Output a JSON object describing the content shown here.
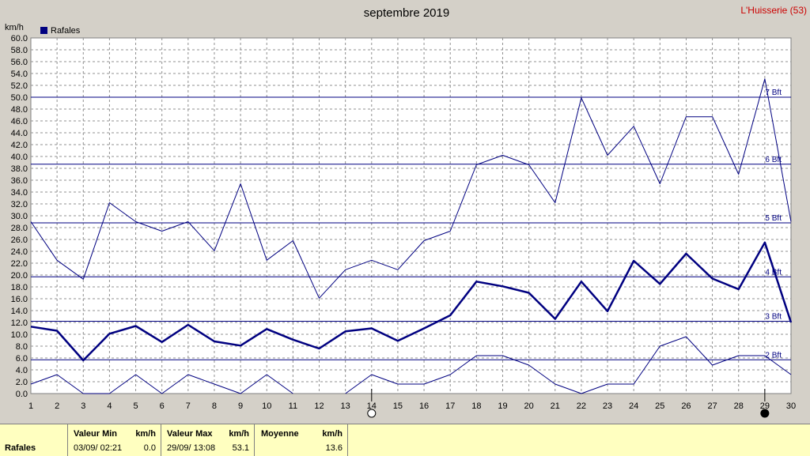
{
  "chart_data": {
    "type": "line",
    "title": "septembre 2019",
    "station": "L'Huisserie (53)",
    "ylabel": "km/h",
    "ylim": [
      0,
      60
    ],
    "y_ticks": [
      "0.0",
      "2.0",
      "4.0",
      "6.0",
      "8.0",
      "10.0",
      "12.0",
      "14.0",
      "16.0",
      "18.0",
      "20.0",
      "22.0",
      "24.0",
      "26.0",
      "28.0",
      "30.0",
      "32.0",
      "34.0",
      "36.0",
      "38.0",
      "40.0",
      "42.0",
      "44.0",
      "46.0",
      "48.0",
      "50.0",
      "52.0",
      "54.0",
      "56.0",
      "58.0",
      "60.0"
    ],
    "x": [
      1,
      2,
      3,
      4,
      5,
      6,
      7,
      8,
      9,
      10,
      11,
      12,
      13,
      14,
      15,
      16,
      17,
      18,
      19,
      20,
      21,
      22,
      23,
      24,
      25,
      26,
      27,
      28,
      29,
      30
    ],
    "x_labels": [
      "1",
      "2",
      "3",
      "4",
      "5",
      "6",
      "7",
      "8",
      "9",
      "10",
      "11",
      "12",
      "13",
      "14",
      "15",
      "16",
      "17",
      "18",
      "19",
      "20",
      "21",
      "22",
      "23",
      "24",
      "25",
      "26",
      "27",
      "28",
      "29",
      "30"
    ],
    "grid": true,
    "legend": [
      {
        "label": "Rafales",
        "color": "#000080"
      }
    ],
    "legend_position": "top-left",
    "series": [
      {
        "name": "max",
        "color": "#000080",
        "values": [
          29.0,
          22.5,
          19.3,
          32.2,
          29.0,
          27.4,
          29.0,
          24.1,
          35.4,
          22.5,
          25.8,
          16.1,
          20.9,
          22.5,
          20.9,
          25.8,
          27.4,
          38.6,
          40.2,
          38.6,
          32.2,
          49.9,
          40.2,
          45.1,
          35.4,
          46.7,
          46.7,
          37.0,
          53.1,
          29.0
        ]
      },
      {
        "name": "avg",
        "color": "#000080",
        "values": [
          11.3,
          10.6,
          5.6,
          10.1,
          11.4,
          8.7,
          11.6,
          8.8,
          8.1,
          10.9,
          9.1,
          7.6,
          10.5,
          11.0,
          8.9,
          11.0,
          13.2,
          18.9,
          18.1,
          17.0,
          12.6,
          18.9,
          13.9,
          22.4,
          18.5,
          23.6,
          19.4,
          17.6,
          25.5,
          12.0
        ]
      },
      {
        "name": "min",
        "color": "#000080",
        "values": [
          1.6,
          3.2,
          0.0,
          0.0,
          3.2,
          0.0,
          3.2,
          1.6,
          0.0,
          3.2,
          0.0,
          null,
          0.0,
          3.2,
          1.6,
          1.6,
          3.2,
          6.4,
          6.4,
          4.8,
          1.6,
          0.0,
          1.6,
          1.6,
          8.0,
          9.6,
          4.8,
          6.4,
          6.4,
          3.2
        ]
      }
    ],
    "beaufort": [
      {
        "label": "2 Bft",
        "value": 5.7
      },
      {
        "label": "3 Bft",
        "value": 12.2
      },
      {
        "label": "4 Bft",
        "value": 19.7
      },
      {
        "label": "5 Bft",
        "value": 28.8
      },
      {
        "label": "6 Bft",
        "value": 38.7
      },
      {
        "label": "7 Bft",
        "value": 50.0
      }
    ],
    "moon_phases": [
      {
        "day": 14,
        "phase": "full"
      },
      {
        "day": 29,
        "phase": "new"
      }
    ]
  },
  "stats": {
    "row_label": "Rafales",
    "min_header": "Valeur Min",
    "min_unit": "km/h",
    "min_date": "03/09/  02:21",
    "min_value": "0.0",
    "max_header": "Valeur Max",
    "max_unit": "km/h",
    "max_date": "29/09/  13:08",
    "max_value": "53.1",
    "avg_header": "Moyenne",
    "avg_unit": "km/h",
    "avg_value": "13.6"
  }
}
